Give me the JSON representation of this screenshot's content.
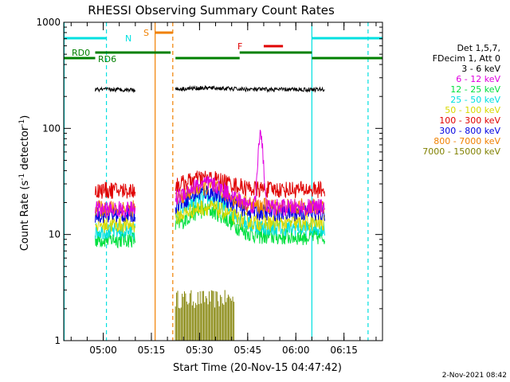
{
  "chart_data": {
    "type": "line",
    "title": "RHESSI Observing Summary Count Rates",
    "xlabel": "Start Time (20-Nov-15 04:47:42)",
    "ylabel_main": "Count Rate (s",
    "ylabel_sup1": "-1",
    "ylabel_mid": " detector",
    "ylabel_sup2": "-1",
    "ylabel_end": ")",
    "ylim": [
      1,
      1000
    ],
    "yscale": "log",
    "y_ticks": [
      {
        "value": 1,
        "label": "1"
      },
      {
        "value": 10,
        "label": "10"
      },
      {
        "value": 100,
        "label": "100"
      },
      {
        "value": 1000,
        "label": "1000"
      }
    ],
    "xlim": [
      "04:47:42",
      "06:27:00"
    ],
    "x_ticks": [
      {
        "t": "05:00",
        "label": "05:00"
      },
      {
        "t": "05:15",
        "label": "05:15"
      },
      {
        "t": "05:30",
        "label": "05:30"
      },
      {
        "t": "05:45",
        "label": "05:45"
      },
      {
        "t": "06:00",
        "label": "06:00"
      },
      {
        "t": "06:15",
        "label": "06:15"
      }
    ],
    "legend_header": [
      "Det 1,5,7,",
      "FDecim 1, Att 0"
    ],
    "series": [
      {
        "name": "3 - 6 keV",
        "color": "#000000",
        "level": [
          230,
          240
        ]
      },
      {
        "name": "6 - 12 keV",
        "color": "#e000e0",
        "level": [
          14,
          30
        ],
        "peak": {
          "t": "05:49",
          "value": 95
        }
      },
      {
        "name": "12 - 25 keV",
        "color": "#00e040",
        "level": [
          7,
          17
        ]
      },
      {
        "name": "25 - 50 keV",
        "color": "#00e0e0",
        "level": [
          8,
          22
        ]
      },
      {
        "name": "50 - 100 keV",
        "color": "#d8d800",
        "level": [
          11,
          18
        ]
      },
      {
        "name": "100 - 300 keV",
        "color": "#e00000",
        "level": [
          24,
          34
        ]
      },
      {
        "name": "300 - 800 keV",
        "color": "#0000e0",
        "level": [
          13,
          25
        ]
      },
      {
        "name": "800 - 7000 keV",
        "color": "#f08000",
        "level": [
          15,
          28
        ]
      },
      {
        "name": "7000 - 15000 keV",
        "color": "#808000",
        "level": [
          2,
          3
        ]
      }
    ],
    "data_gaps": [
      {
        "start": "04:47:42",
        "end": "04:57:30"
      },
      {
        "start": "05:10:00",
        "end": "05:22:30"
      },
      {
        "start": "06:09:00",
        "end": "06:27:00"
      }
    ],
    "flags": [
      {
        "label": "N",
        "color": "#00e0e0"
      },
      {
        "label": "S",
        "color": "#f08000"
      },
      {
        "label": "F",
        "color": "#e00000"
      },
      {
        "label": "RD0",
        "color": "#008000"
      },
      {
        "label": "RD6",
        "color": "#008000"
      }
    ],
    "footer_date": "2-Nov-2021 08:42"
  }
}
